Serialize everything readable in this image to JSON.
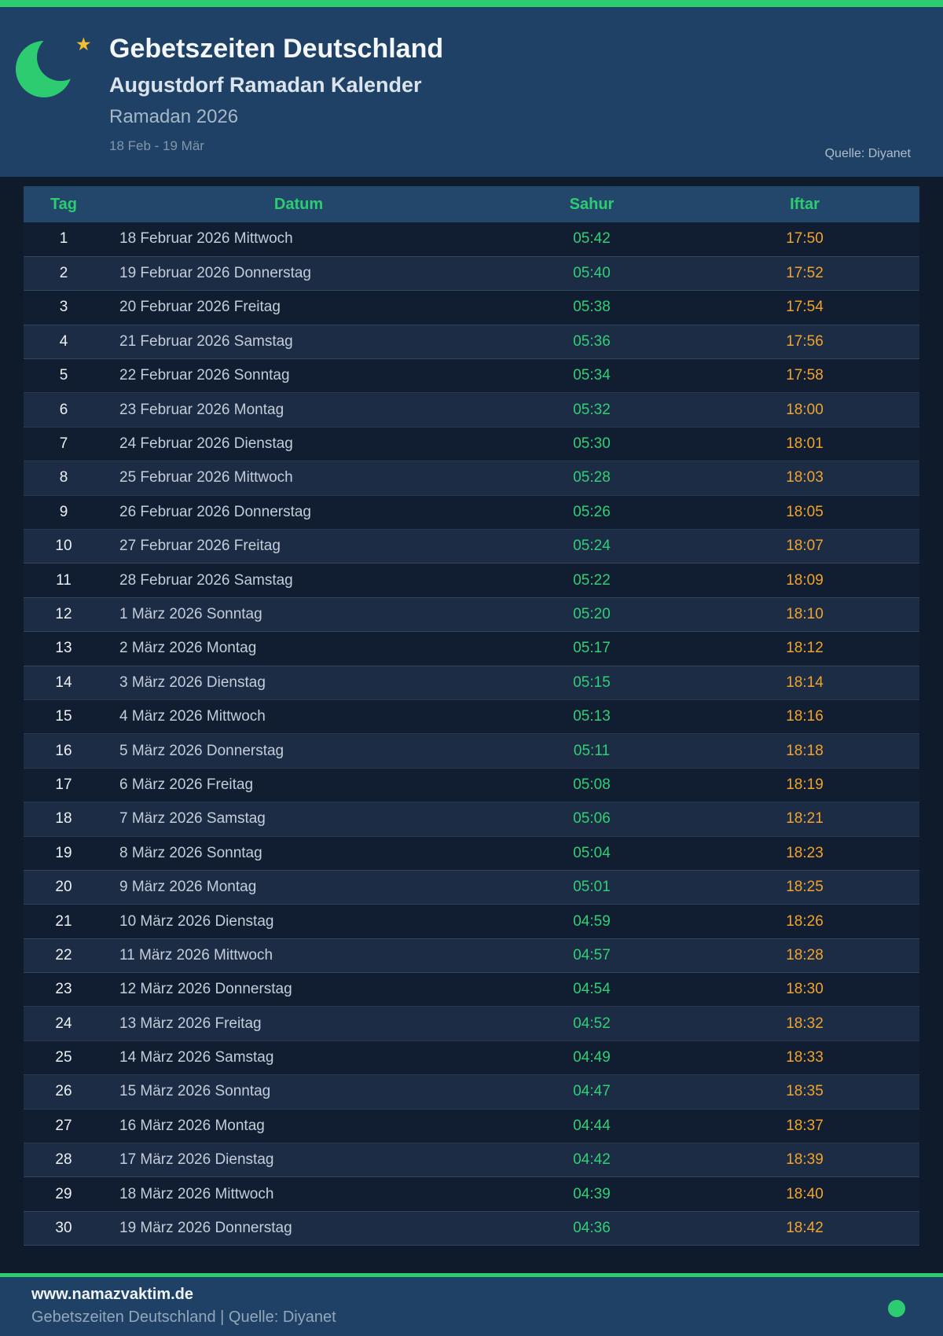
{
  "header": {
    "title": "Gebetszeiten Deutschland",
    "subtitle": "Augustdorf Ramadan Kalender",
    "season": "Ramadan 2026",
    "date_range": "18 Feb - 19 Mär",
    "source": "Quelle: Diyanet"
  },
  "table": {
    "columns": [
      "Tag",
      "Datum",
      "Sahur",
      "Iftar"
    ],
    "rows": [
      [
        "1",
        "18 Februar 2026 Mittwoch",
        "05:42",
        "17:50"
      ],
      [
        "2",
        "19 Februar 2026 Donnerstag",
        "05:40",
        "17:52"
      ],
      [
        "3",
        "20 Februar 2026 Freitag",
        "05:38",
        "17:54"
      ],
      [
        "4",
        "21 Februar 2026 Samstag",
        "05:36",
        "17:56"
      ],
      [
        "5",
        "22 Februar 2026 Sonntag",
        "05:34",
        "17:58"
      ],
      [
        "6",
        "23 Februar 2026 Montag",
        "05:32",
        "18:00"
      ],
      [
        "7",
        "24 Februar 2026 Dienstag",
        "05:30",
        "18:01"
      ],
      [
        "8",
        "25 Februar 2026 Mittwoch",
        "05:28",
        "18:03"
      ],
      [
        "9",
        "26 Februar 2026 Donnerstag",
        "05:26",
        "18:05"
      ],
      [
        "10",
        "27 Februar 2026 Freitag",
        "05:24",
        "18:07"
      ],
      [
        "11",
        "28 Februar 2026 Samstag",
        "05:22",
        "18:09"
      ],
      [
        "12",
        "1 März 2026 Sonntag",
        "05:20",
        "18:10"
      ],
      [
        "13",
        "2 März 2026 Montag",
        "05:17",
        "18:12"
      ],
      [
        "14",
        "3 März 2026 Dienstag",
        "05:15",
        "18:14"
      ],
      [
        "15",
        "4 März 2026 Mittwoch",
        "05:13",
        "18:16"
      ],
      [
        "16",
        "5 März 2026 Donnerstag",
        "05:11",
        "18:18"
      ],
      [
        "17",
        "6 März 2026 Freitag",
        "05:08",
        "18:19"
      ],
      [
        "18",
        "7 März 2026 Samstag",
        "05:06",
        "18:21"
      ],
      [
        "19",
        "8 März 2026 Sonntag",
        "05:04",
        "18:23"
      ],
      [
        "20",
        "9 März 2026 Montag",
        "05:01",
        "18:25"
      ],
      [
        "21",
        "10 März 2026 Dienstag",
        "04:59",
        "18:26"
      ],
      [
        "22",
        "11 März 2026 Mittwoch",
        "04:57",
        "18:28"
      ],
      [
        "23",
        "12 März 2026 Donnerstag",
        "04:54",
        "18:30"
      ],
      [
        "24",
        "13 März 2026 Freitag",
        "04:52",
        "18:32"
      ],
      [
        "25",
        "14 März 2026 Samstag",
        "04:49",
        "18:33"
      ],
      [
        "26",
        "15 März 2026 Sonntag",
        "04:47",
        "18:35"
      ],
      [
        "27",
        "16 März 2026 Montag",
        "04:44",
        "18:37"
      ],
      [
        "28",
        "17 März 2026 Dienstag",
        "04:42",
        "18:39"
      ],
      [
        "29",
        "18 März 2026 Mittwoch",
        "04:39",
        "18:40"
      ],
      [
        "30",
        "19 März 2026 Donnerstag",
        "04:36",
        "18:42"
      ]
    ]
  },
  "footer": {
    "website": "www.namazvaktim.de",
    "tagline": "Gebetszeiten Deutschland | Quelle: Diyanet"
  },
  "colors": {
    "accent_green": "#2ecc71",
    "sahur_green": "#30d075",
    "iftar_orange": "#f0a42e",
    "banner_bg": "#1f4166",
    "page_bg": "#0f1a2b",
    "star_gold": "#f5c02e"
  }
}
